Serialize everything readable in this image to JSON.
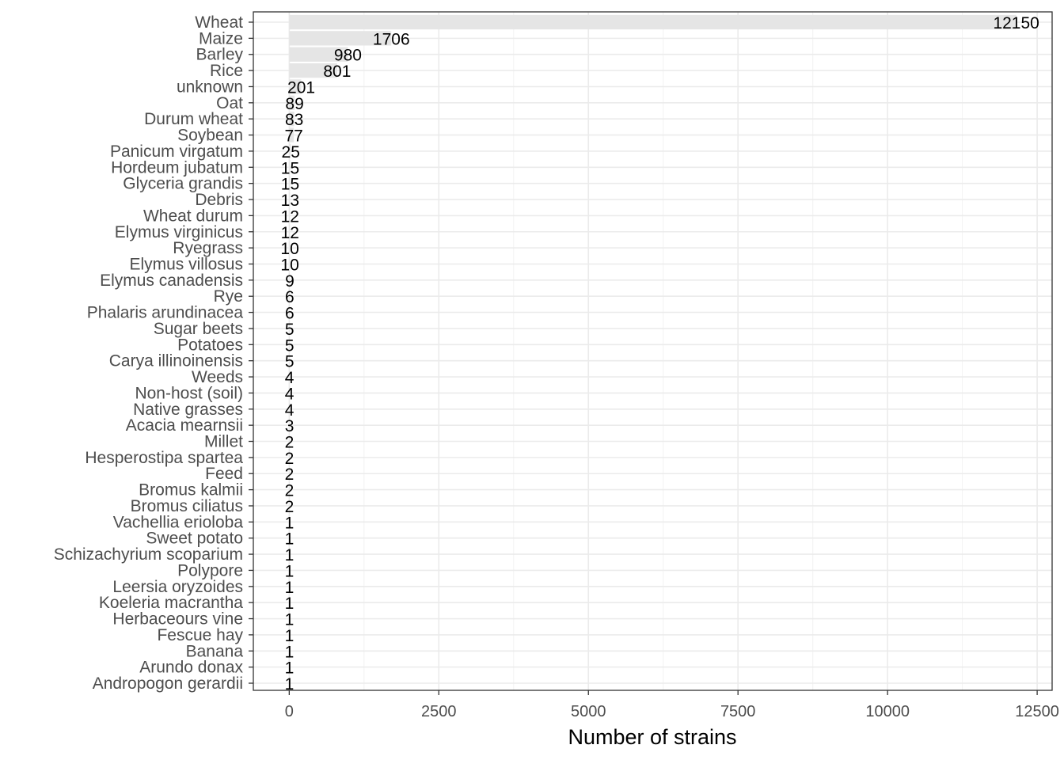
{
  "chart_data": {
    "type": "bar",
    "orientation": "horizontal",
    "title": "",
    "xlabel": "Number of strains",
    "ylabel": "",
    "xlim": [
      -600,
      12750
    ],
    "x_ticks": [
      0,
      2500,
      5000,
      7500,
      10000,
      12500
    ],
    "x_tick_labels": [
      "0",
      "2500",
      "5000",
      "7500",
      "10000",
      "12500"
    ],
    "grid": true,
    "legend": "none",
    "bar_color": "#e5e5e5",
    "categories": [
      "Wheat",
      "Maize",
      "Barley",
      "Rice",
      "unknown",
      "Oat",
      "Durum wheat",
      "Soybean",
      "Panicum virgatum",
      "Hordeum jubatum",
      "Glyceria grandis",
      "Debris",
      "Wheat durum",
      "Elymus virginicus",
      "Ryegrass",
      "Elymus villosus",
      "Elymus canadensis",
      "Rye",
      "Phalaris arundinacea",
      "Sugar beets",
      "Potatoes",
      "Carya illinoinensis",
      "Weeds",
      "Non-host (soil)",
      "Native grasses",
      "Acacia mearnsii",
      "Millet",
      "Hesperostipa spartea",
      "Feed",
      "Bromus kalmii",
      "Bromus ciliatus",
      "Vachellia erioloba",
      "Sweet potato",
      "Schizachyrium scoparium",
      "Polypore",
      "Leersia oryzoides",
      "Koeleria macrantha",
      "Herbaceours vine",
      "Fescue hay",
      "Banana",
      "Arundo donax",
      "Andropogon gerardii"
    ],
    "values": [
      12150,
      1706,
      980,
      801,
      201,
      89,
      83,
      77,
      25,
      15,
      15,
      13,
      12,
      12,
      10,
      10,
      9,
      6,
      6,
      5,
      5,
      5,
      4,
      4,
      4,
      3,
      2,
      2,
      2,
      2,
      2,
      1,
      1,
      1,
      1,
      1,
      1,
      1,
      1,
      1,
      1,
      1
    ]
  }
}
